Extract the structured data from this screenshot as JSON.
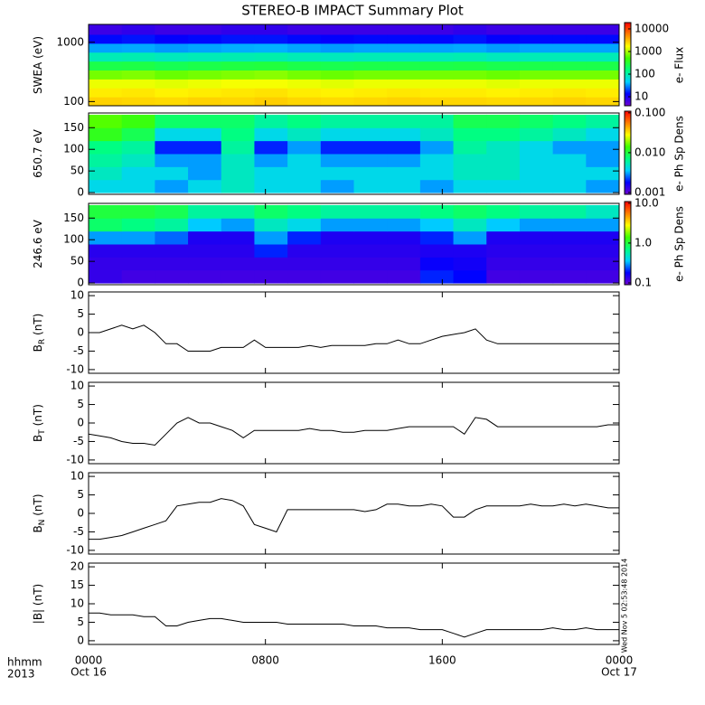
{
  "title": "STEREO-B IMPACT Summary Plot",
  "timestamp": "Wed Nov  5 02:53:48 2014",
  "x_axis": {
    "xlim": [
      0,
      24
    ],
    "xticks": [
      {
        "value": 0,
        "label": "0000"
      },
      {
        "value": 8,
        "label": "0800"
      },
      {
        "value": 16,
        "label": "1600"
      },
      {
        "value": 24,
        "label": "0000"
      }
    ],
    "time_label": "hhmm",
    "year_label": "2013",
    "date_labels": [
      "Oct 16",
      "Oct 17"
    ]
  },
  "chart_data": [
    {
      "type": "heatmap",
      "ylabel": "SWEA (eV)",
      "ylog": true,
      "ylim": [
        85,
        2000
      ],
      "yticks": [
        100,
        1000
      ],
      "x_bins": [
        0,
        1.5,
        3,
        4.5,
        6,
        7.5,
        9,
        10.5,
        12,
        13.5,
        15,
        16.5,
        18,
        19.5,
        21,
        22.5,
        24
      ],
      "y_bins": [
        85,
        120,
        170,
        240,
        340,
        480,
        680,
        960,
        1360,
        2000
      ],
      "values": [
        [
          2600,
          2500,
          2400,
          2600,
          2500,
          2700,
          2500,
          2400,
          2500,
          2600,
          2500,
          2500,
          2400,
          2500,
          2600,
          2500
        ],
        [
          2000,
          2100,
          1900,
          2000,
          2100,
          2200,
          2000,
          1900,
          2000,
          2100,
          2000,
          2000,
          1900,
          2000,
          2100,
          2000
        ],
        [
          1500,
          1500,
          1400,
          1500,
          1600,
          1600,
          1500,
          1400,
          1500,
          1500,
          1500,
          1500,
          1400,
          1500,
          1500,
          1500
        ],
        [
          700,
          750,
          650,
          700,
          750,
          800,
          700,
          650,
          700,
          700,
          700,
          700,
          650,
          700,
          700,
          700
        ],
        [
          250,
          260,
          230,
          250,
          270,
          280,
          250,
          240,
          250,
          250,
          250,
          260,
          240,
          250,
          250,
          250
        ],
        [
          90,
          95,
          85,
          90,
          95,
          100,
          90,
          85,
          90,
          90,
          90,
          95,
          85,
          90,
          90,
          90
        ],
        [
          35,
          36,
          33,
          35,
          37,
          38,
          35,
          33,
          35,
          35,
          35,
          36,
          33,
          35,
          35,
          35
        ],
        [
          14,
          15,
          13,
          14,
          15,
          15,
          14,
          13,
          14,
          14,
          14,
          15,
          13,
          14,
          14,
          14
        ],
        [
          7,
          8,
          7,
          7,
          8,
          8,
          7,
          7,
          7,
          7,
          7,
          8,
          7,
          7,
          7,
          7
        ]
      ],
      "colorbar": {
        "label": "e- Flux",
        "log": true,
        "clim": [
          4,
          19000
        ],
        "ticks": [
          10,
          100,
          1000,
          10000
        ],
        "colorscale": [
          "#7000d0",
          "#0000ff",
          "#00d0ff",
          "#00ff80",
          "#40ff00",
          "#ffff00",
          "#ff8000",
          "#ff0000"
        ]
      }
    },
    {
      "type": "heatmap",
      "ylabel": "650.7 eV",
      "ylog": false,
      "ylim": [
        -4,
        184
      ],
      "yticks": [
        0,
        50,
        100,
        150
      ],
      "x_bins": [
        0,
        1.5,
        3,
        4.5,
        6,
        7.5,
        9,
        10.5,
        12,
        13.5,
        15,
        16.5,
        18,
        19.5,
        21,
        22.5,
        24
      ],
      "y_bins": [
        0,
        30,
        60,
        90,
        120,
        150,
        180
      ],
      "values": [
        [
          0.004,
          0.004,
          0.003,
          0.004,
          0.005,
          0.004,
          0.004,
          0.003,
          0.004,
          0.004,
          0.003,
          0.004,
          0.004,
          0.004,
          0.004,
          0.003
        ],
        [
          0.005,
          0.004,
          0.004,
          0.003,
          0.005,
          0.004,
          0.004,
          0.004,
          0.004,
          0.004,
          0.004,
          0.005,
          0.005,
          0.004,
          0.004,
          0.004
        ],
        [
          0.006,
          0.005,
          0.003,
          0.003,
          0.005,
          0.003,
          0.004,
          0.003,
          0.003,
          0.003,
          0.004,
          0.005,
          0.005,
          0.004,
          0.004,
          0.003
        ],
        [
          0.007,
          0.006,
          0.002,
          0.002,
          0.006,
          0.002,
          0.003,
          0.002,
          0.002,
          0.002,
          0.003,
          0.006,
          0.005,
          0.004,
          0.003,
          0.003
        ],
        [
          0.012,
          0.009,
          0.004,
          0.004,
          0.007,
          0.004,
          0.005,
          0.004,
          0.004,
          0.004,
          0.005,
          0.007,
          0.007,
          0.006,
          0.005,
          0.004
        ],
        [
          0.015,
          0.013,
          0.008,
          0.008,
          0.008,
          0.006,
          0.007,
          0.006,
          0.006,
          0.006,
          0.006,
          0.009,
          0.009,
          0.008,
          0.007,
          0.006
        ]
      ],
      "colorbar": {
        "label": "e- Ph Sp Dens",
        "log": true,
        "clim": [
          0.0009,
          0.11
        ],
        "ticks": [
          {
            "value": 0.1,
            "label": "0.100"
          },
          {
            "value": 0.01,
            "label": "0.010"
          },
          0.001
        ],
        "colorscale": [
          "#7000d0",
          "#0000ff",
          "#00d0ff",
          "#00ff80",
          "#40ff00",
          "#ffff00",
          "#ff8000",
          "#ff0000"
        ]
      }
    },
    {
      "type": "heatmap",
      "ylabel": "246.6 eV",
      "ylog": false,
      "ylim": [
        -4,
        184
      ],
      "yticks": [
        0,
        50,
        100,
        150
      ],
      "x_bins": [
        0,
        1.5,
        3,
        4.5,
        6,
        7.5,
        9,
        10.5,
        12,
        13.5,
        15,
        16.5,
        18,
        19.5,
        21,
        22.5,
        24
      ],
      "y_bins": [
        0,
        30,
        60,
        90,
        120,
        150,
        180
      ],
      "values": [
        [
          0.13,
          0.12,
          0.12,
          0.12,
          0.12,
          0.12,
          0.12,
          0.12,
          0.12,
          0.12,
          0.2,
          0.18,
          0.12,
          0.12,
          0.12,
          0.12
        ],
        [
          0.13,
          0.13,
          0.13,
          0.13,
          0.13,
          0.13,
          0.13,
          0.13,
          0.13,
          0.13,
          0.17,
          0.16,
          0.13,
          0.13,
          0.13,
          0.13
        ],
        [
          0.14,
          0.14,
          0.14,
          0.14,
          0.14,
          0.2,
          0.14,
          0.14,
          0.14,
          0.14,
          0.15,
          0.15,
          0.14,
          0.14,
          0.14,
          0.14
        ],
        [
          0.3,
          0.3,
          0.25,
          0.15,
          0.15,
          0.3,
          0.2,
          0.15,
          0.15,
          0.15,
          0.2,
          0.3,
          0.15,
          0.15,
          0.15,
          0.15
        ],
        [
          0.8,
          0.7,
          0.6,
          0.35,
          0.3,
          0.5,
          0.4,
          0.3,
          0.3,
          0.3,
          0.35,
          0.5,
          0.35,
          0.3,
          0.3,
          0.3
        ],
        [
          1.0,
          1.0,
          0.9,
          0.6,
          0.6,
          0.8,
          0.7,
          0.6,
          0.6,
          0.6,
          0.7,
          0.8,
          0.7,
          0.6,
          0.6,
          0.5
        ]
      ],
      "colorbar": {
        "label": "e- Ph Sp Dens",
        "log": true,
        "clim": [
          0.09,
          11
        ],
        "ticks": [
          {
            "value": 10,
            "label": "10.0"
          },
          {
            "value": 1,
            "label": "1.0"
          },
          0.1
        ],
        "colorscale": [
          "#7000d0",
          "#0000ff",
          "#00d0ff",
          "#00ff80",
          "#40ff00",
          "#ffff00",
          "#ff8000",
          "#ff0000"
        ]
      }
    },
    {
      "type": "line",
      "ylabel": "B",
      "ylabel_sub": "R",
      "ylabel_unit": "(nT)",
      "ylim": [
        -11,
        11
      ],
      "yticks": [
        -10,
        -5,
        0,
        5,
        10
      ],
      "color": "#000000",
      "x": [
        0,
        0.5,
        1,
        1.5,
        2,
        2.5,
        3,
        3.5,
        4,
        4.5,
        5,
        5.5,
        6,
        6.5,
        7,
        7.5,
        8,
        8.5,
        9,
        9.5,
        10,
        10.5,
        11,
        11.5,
        12,
        12.5,
        13,
        13.5,
        14,
        14.5,
        15,
        15.5,
        16,
        16.5,
        17,
        17.5,
        18,
        18.5,
        19,
        19.5,
        20,
        20.5,
        21,
        21.5,
        22,
        22.5,
        23,
        23.5,
        24
      ],
      "values": [
        0,
        0,
        1,
        2,
        1,
        2,
        0,
        -3,
        -3,
        -5,
        -5,
        -5,
        -4,
        -4,
        -4,
        -2,
        -4,
        -4,
        -4,
        -4,
        -3.5,
        -4,
        -3.5,
        -3.5,
        -3.5,
        -3.5,
        -3,
        -3,
        -2,
        -3,
        -3,
        -2,
        -1,
        -0.5,
        0,
        1,
        -2,
        -3,
        -3,
        -3,
        -3,
        -3,
        -3,
        -3,
        -3,
        -3,
        -3,
        -3,
        -3
      ]
    },
    {
      "type": "line",
      "ylabel": "B",
      "ylabel_sub": "T",
      "ylabel_unit": "(nT)",
      "ylim": [
        -11,
        11
      ],
      "yticks": [
        -10,
        -5,
        0,
        5,
        10
      ],
      "color": "#000000",
      "x": [
        0,
        0.5,
        1,
        1.5,
        2,
        2.5,
        3,
        3.5,
        4,
        4.5,
        5,
        5.5,
        6,
        6.5,
        7,
        7.5,
        8,
        8.5,
        9,
        9.5,
        10,
        10.5,
        11,
        11.5,
        12,
        12.5,
        13,
        13.5,
        14,
        14.5,
        15,
        15.5,
        16,
        16.5,
        17,
        17.5,
        18,
        18.5,
        19,
        19.5,
        20,
        20.5,
        21,
        21.5,
        22,
        22.5,
        23,
        23.5,
        24
      ],
      "values": [
        -3,
        -3.5,
        -4,
        -5,
        -5.5,
        -5.5,
        -6,
        -3,
        0,
        1.5,
        0,
        0,
        -1,
        -2,
        -4,
        -2,
        -2,
        -2,
        -2,
        -2,
        -1.5,
        -2,
        -2,
        -2.5,
        -2.5,
        -2,
        -2,
        -2,
        -1.5,
        -1,
        -1,
        -1,
        -1,
        -1,
        -3,
        1.5,
        1,
        -1,
        -1,
        -1,
        -1,
        -1,
        -1,
        -1,
        -1,
        -1,
        -1,
        -0.5,
        -0.5
      ]
    },
    {
      "type": "line",
      "ylabel": "B",
      "ylabel_sub": "N",
      "ylabel_unit": "(nT)",
      "ylim": [
        -11,
        11
      ],
      "yticks": [
        -10,
        -5,
        0,
        5,
        10
      ],
      "color": "#000000",
      "x": [
        0,
        0.5,
        1,
        1.5,
        2,
        2.5,
        3,
        3.5,
        4,
        4.5,
        5,
        5.5,
        6,
        6.5,
        7,
        7.5,
        8,
        8.5,
        9,
        9.5,
        10,
        10.5,
        11,
        11.5,
        12,
        12.5,
        13,
        13.5,
        14,
        14.5,
        15,
        15.5,
        16,
        16.5,
        17,
        17.5,
        18,
        18.5,
        19,
        19.5,
        20,
        20.5,
        21,
        21.5,
        22,
        22.5,
        23,
        23.5,
        24
      ],
      "values": [
        -7,
        -7,
        -6.5,
        -6,
        -5,
        -4,
        -3,
        -2,
        2,
        2.5,
        3,
        3,
        4,
        3.5,
        2,
        -3,
        -4,
        -5,
        1,
        1,
        1,
        1,
        1,
        1,
        1,
        0.5,
        1,
        2.5,
        2.5,
        2,
        2,
        2.5,
        2,
        -1,
        -1,
        1,
        2,
        2,
        2,
        2,
        2.5,
        2,
        2,
        2.5,
        2,
        2.5,
        2,
        1.5,
        1.5
      ]
    },
    {
      "type": "line",
      "ylabel": "|B| (nT)",
      "ylim": [
        -1,
        21
      ],
      "yticks": [
        0,
        5,
        10,
        15,
        20
      ],
      "color": "#000000",
      "x": [
        0,
        0.5,
        1,
        1.5,
        2,
        2.5,
        3,
        3.5,
        4,
        4.5,
        5,
        5.5,
        6,
        6.5,
        7,
        7.5,
        8,
        8.5,
        9,
        9.5,
        10,
        10.5,
        11,
        11.5,
        12,
        12.5,
        13,
        13.5,
        14,
        14.5,
        15,
        15.5,
        16,
        16.5,
        17,
        17.5,
        18,
        18.5,
        19,
        19.5,
        20,
        20.5,
        21,
        21.5,
        22,
        22.5,
        23,
        23.5,
        24
      ],
      "values": [
        7.5,
        7.5,
        7,
        7,
        7,
        6.5,
        6.5,
        4,
        4,
        5,
        5.5,
        6,
        6,
        5.5,
        5,
        5,
        5,
        5,
        4.5,
        4.5,
        4.5,
        4.5,
        4.5,
        4.5,
        4,
        4,
        4,
        3.5,
        3.5,
        3.5,
        3,
        3,
        3,
        2,
        1,
        2,
        3,
        3,
        3,
        3,
        3,
        3,
        3.5,
        3,
        3,
        3.5,
        3,
        3,
        3
      ]
    }
  ]
}
